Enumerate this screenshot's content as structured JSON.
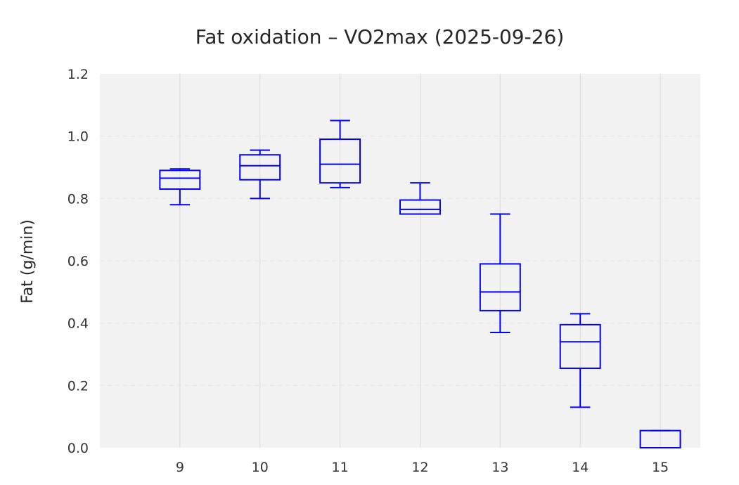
{
  "chart_data": {
    "type": "box",
    "title": "Fat oxidation – VO2max (2025-09-26)",
    "xlabel": "",
    "ylabel": "Fat (g/min)",
    "ylim": [
      0,
      1.2
    ],
    "yticks": [
      "0.0",
      "0.2",
      "0.4",
      "0.6",
      "0.8",
      "1.0",
      "1.2"
    ],
    "categories": [
      "9",
      "10",
      "11",
      "12",
      "13",
      "14",
      "15"
    ],
    "boxes": [
      {
        "category": "9",
        "whisker_low": 0.78,
        "q1": 0.83,
        "median": 0.865,
        "q3": 0.89,
        "whisker_high": 0.895
      },
      {
        "category": "10",
        "whisker_low": 0.8,
        "q1": 0.86,
        "median": 0.905,
        "q3": 0.94,
        "whisker_high": 0.955
      },
      {
        "category": "11",
        "whisker_low": 0.835,
        "q1": 0.85,
        "median": 0.91,
        "q3": 0.99,
        "whisker_high": 1.05
      },
      {
        "category": "12",
        "whisker_low": 0.75,
        "q1": 0.75,
        "median": 0.765,
        "q3": 0.795,
        "whisker_high": 0.85
      },
      {
        "category": "13",
        "whisker_low": 0.37,
        "q1": 0.44,
        "median": 0.5,
        "q3": 0.59,
        "whisker_high": 0.75
      },
      {
        "category": "14",
        "whisker_low": 0.13,
        "q1": 0.255,
        "median": 0.34,
        "q3": 0.395,
        "whisker_high": 0.43
      },
      {
        "category": "15",
        "whisker_low": 0.0,
        "q1": 0.0,
        "median": 0.0,
        "q3": 0.055,
        "whisker_high": 0.055
      }
    ],
    "grid": true,
    "colors": {
      "box": "#0000ff",
      "plot_background": "#f2f2f2",
      "grid": "#d9d9d9"
    }
  }
}
